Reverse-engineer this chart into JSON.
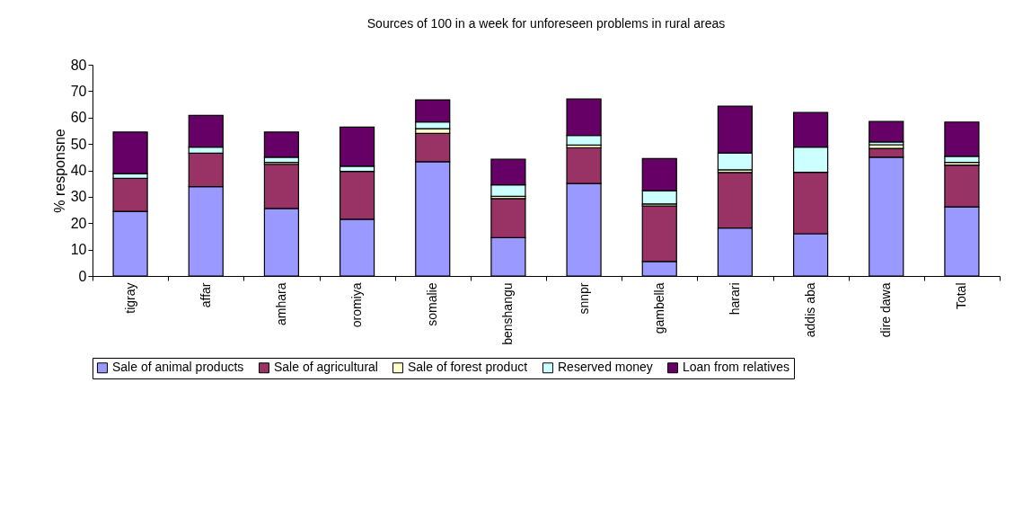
{
  "chart_data": {
    "type": "bar",
    "stacked": true,
    "title": "Sources of 100 in a week for unforeseen problems in rural areas",
    "ylabel": "% responsne",
    "categories": [
      "tigray",
      "affar",
      "amhara",
      "oromiya",
      "somalie",
      "benshangu",
      "snnpr",
      "gambella",
      "harari",
      "addis aba",
      "dire dawa",
      "Total"
    ],
    "series": [
      {
        "name": "Sale of animal products",
        "color": "#9999ff",
        "values": [
          24.5,
          33.8,
          25.6,
          21.5,
          43.3,
          14.5,
          35,
          5.5,
          18.2,
          16,
          45,
          26.2
        ]
      },
      {
        "name": "Sale of agricultural",
        "color": "#993366",
        "values": [
          12.5,
          12.7,
          16.7,
          18.1,
          10.7,
          14.8,
          13.6,
          21,
          21,
          23.3,
          3.3,
          15.8
        ]
      },
      {
        "name": "Sale of forest product",
        "color": "#ffffcc",
        "values": [
          null,
          null,
          0.7,
          null,
          1.8,
          0.9,
          1,
          0.8,
          1,
          null,
          1.4,
          1
        ]
      },
      {
        "name": "Reserved money",
        "color": "#ccffff",
        "values": [
          1.8,
          2.3,
          2,
          2,
          2.5,
          4.3,
          3.6,
          5,
          6.4,
          9.5,
          1.1,
          2.3
        ]
      },
      {
        "name": "Loan from relatives",
        "color": "#660066",
        "values": [
          15.7,
          12,
          9.5,
          14.8,
          8.4,
          9.7,
          13.8,
          12.2,
          17.7,
          13.1,
          7.7,
          13
        ]
      }
    ],
    "ylim": [
      0,
      80
    ],
    "yticks": [
      0,
      10,
      20,
      30,
      40,
      50,
      60,
      70,
      80
    ],
    "grid": false,
    "legend": "bottom"
  }
}
